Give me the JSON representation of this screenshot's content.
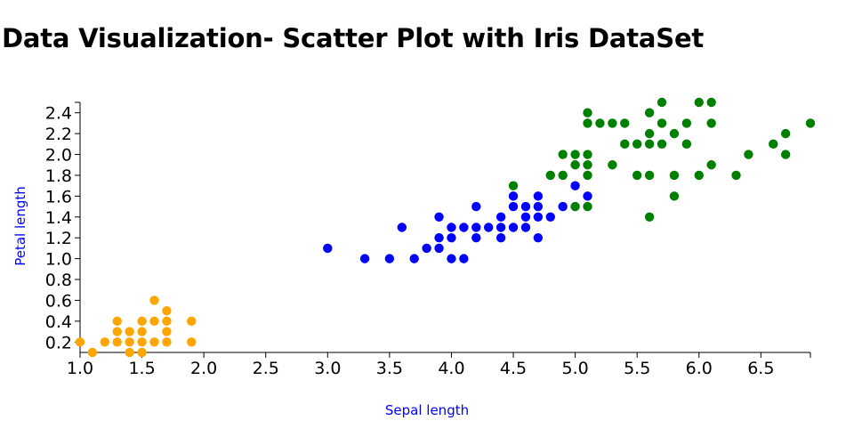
{
  "page": {
    "title": "Data Visualization- Scatter Plot with Iris DataSet"
  },
  "colors": {
    "setosa": "#ffa500",
    "versicolor": "#0000ff",
    "virginica": "#008000",
    "axis_title": "#0000ff"
  },
  "chart_data": {
    "type": "scatter",
    "title": "Data Visualization- Scatter Plot with Iris DataSet",
    "xlabel": "Sepal length",
    "ylabel": "Petal length",
    "xlim": [
      1.0,
      6.9
    ],
    "ylim": [
      0.1,
      2.5
    ],
    "grid": false,
    "x_ticks": [
      "1.0",
      "1.5",
      "2.0",
      "2.5",
      "3.0",
      "3.5",
      "4.0",
      "4.5",
      "5.0",
      "5.5",
      "6.0",
      "6.5"
    ],
    "y_ticks": [
      "0.2",
      "0.4",
      "0.6",
      "0.8",
      "1.0",
      "1.2",
      "1.4",
      "1.6",
      "1.8",
      "2.0",
      "2.2",
      "2.4"
    ],
    "series": [
      {
        "color": "#ffa500",
        "points": [
          [
            1.0,
            0.2
          ],
          [
            1.1,
            0.1
          ],
          [
            1.2,
            0.2
          ],
          [
            1.3,
            0.2
          ],
          [
            1.3,
            0.3
          ],
          [
            1.3,
            0.4
          ],
          [
            1.4,
            0.1
          ],
          [
            1.4,
            0.2
          ],
          [
            1.4,
            0.3
          ],
          [
            1.5,
            0.1
          ],
          [
            1.5,
            0.2
          ],
          [
            1.5,
            0.3
          ],
          [
            1.5,
            0.4
          ],
          [
            1.6,
            0.2
          ],
          [
            1.6,
            0.4
          ],
          [
            1.6,
            0.6
          ],
          [
            1.7,
            0.2
          ],
          [
            1.7,
            0.3
          ],
          [
            1.7,
            0.4
          ],
          [
            1.7,
            0.5
          ],
          [
            1.9,
            0.2
          ],
          [
            1.9,
            0.4
          ]
        ]
      },
      {
        "color": "#0000ff",
        "points": [
          [
            3.0,
            1.1
          ],
          [
            3.3,
            1.0
          ],
          [
            3.5,
            1.0
          ],
          [
            3.6,
            1.3
          ],
          [
            3.7,
            1.0
          ],
          [
            3.8,
            1.1
          ],
          [
            3.9,
            1.1
          ],
          [
            3.9,
            1.2
          ],
          [
            3.9,
            1.4
          ],
          [
            4.0,
            1.0
          ],
          [
            4.0,
            1.2
          ],
          [
            4.0,
            1.3
          ],
          [
            4.1,
            1.0
          ],
          [
            4.1,
            1.3
          ],
          [
            4.2,
            1.2
          ],
          [
            4.2,
            1.3
          ],
          [
            4.2,
            1.5
          ],
          [
            4.3,
            1.3
          ],
          [
            4.4,
            1.2
          ],
          [
            4.4,
            1.3
          ],
          [
            4.4,
            1.4
          ],
          [
            4.5,
            1.3
          ],
          [
            4.5,
            1.5
          ],
          [
            4.5,
            1.6
          ],
          [
            4.6,
            1.3
          ],
          [
            4.6,
            1.4
          ],
          [
            4.6,
            1.5
          ],
          [
            4.7,
            1.2
          ],
          [
            4.7,
            1.4
          ],
          [
            4.7,
            1.5
          ],
          [
            4.7,
            1.6
          ],
          [
            4.8,
            1.4
          ],
          [
            4.9,
            1.5
          ],
          [
            5.0,
            1.7
          ],
          [
            5.1,
            1.6
          ]
        ]
      },
      {
        "color": "#008000",
        "points": [
          [
            4.5,
            1.7
          ],
          [
            4.8,
            1.8
          ],
          [
            4.9,
            1.8
          ],
          [
            4.9,
            2.0
          ],
          [
            5.0,
            1.5
          ],
          [
            5.0,
            1.9
          ],
          [
            5.0,
            2.0
          ],
          [
            5.1,
            1.5
          ],
          [
            5.1,
            1.8
          ],
          [
            5.1,
            1.9
          ],
          [
            5.1,
            2.0
          ],
          [
            5.1,
            2.3
          ],
          [
            5.1,
            2.4
          ],
          [
            5.2,
            2.3
          ],
          [
            5.3,
            1.9
          ],
          [
            5.3,
            2.3
          ],
          [
            5.4,
            2.1
          ],
          [
            5.4,
            2.3
          ],
          [
            5.5,
            1.8
          ],
          [
            5.5,
            2.1
          ],
          [
            5.6,
            1.4
          ],
          [
            5.6,
            1.8
          ],
          [
            5.6,
            2.1
          ],
          [
            5.6,
            2.2
          ],
          [
            5.6,
            2.4
          ],
          [
            5.7,
            2.1
          ],
          [
            5.7,
            2.3
          ],
          [
            5.7,
            2.5
          ],
          [
            5.8,
            1.6
          ],
          [
            5.8,
            1.8
          ],
          [
            5.8,
            2.2
          ],
          [
            5.9,
            2.1
          ],
          [
            5.9,
            2.3
          ],
          [
            6.0,
            1.8
          ],
          [
            6.0,
            2.5
          ],
          [
            6.1,
            1.9
          ],
          [
            6.1,
            2.3
          ],
          [
            6.1,
            2.5
          ],
          [
            6.3,
            1.8
          ],
          [
            6.4,
            2.0
          ],
          [
            6.6,
            2.1
          ],
          [
            6.7,
            2.0
          ],
          [
            6.7,
            2.2
          ],
          [
            6.9,
            2.3
          ]
        ]
      }
    ]
  }
}
